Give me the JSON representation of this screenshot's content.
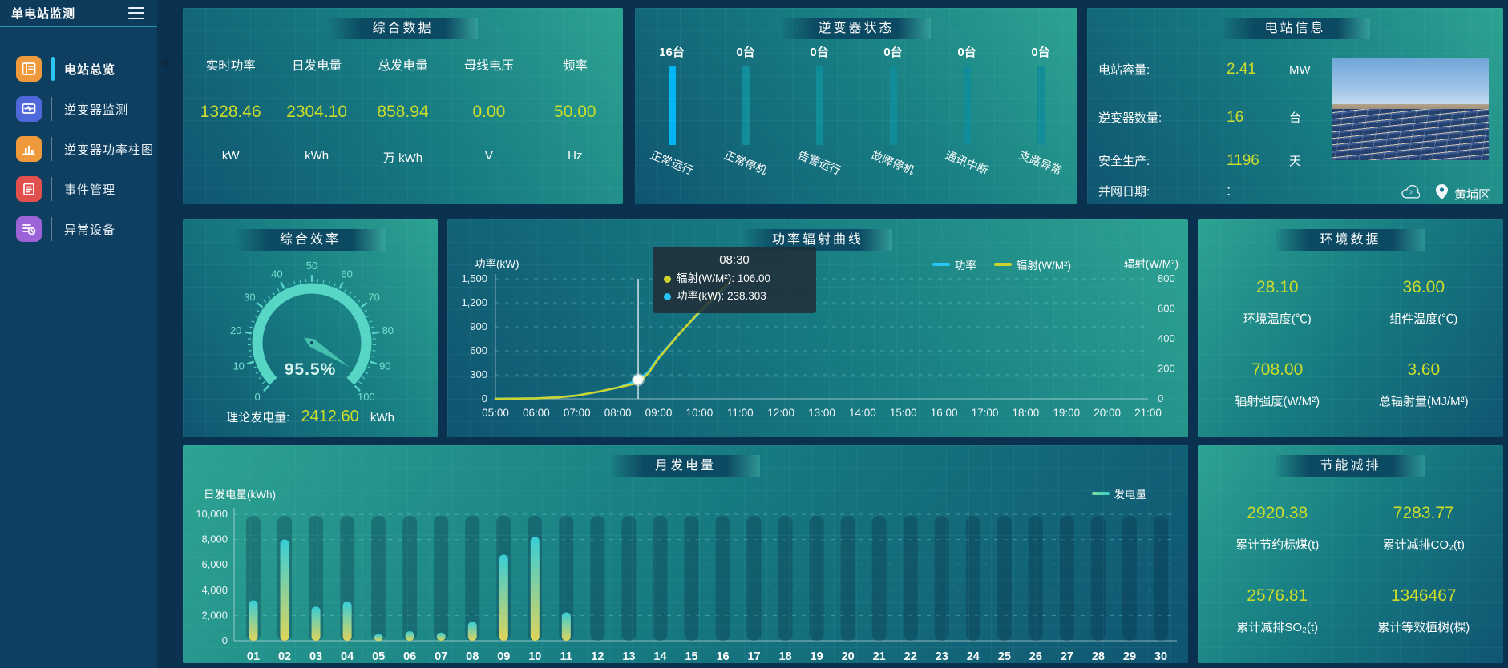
{
  "sidebar": {
    "title": "单电站监测",
    "items": [
      {
        "label": "电站总览",
        "active": true
      },
      {
        "label": "逆变器监测",
        "active": false
      },
      {
        "label": "逆变器功率柱图",
        "active": false
      },
      {
        "label": "事件管理",
        "active": false
      },
      {
        "label": "异常设备",
        "active": false
      }
    ]
  },
  "panels": {
    "summary": {
      "title": "综合数据",
      "metrics": [
        {
          "label": "实时功率",
          "value": "1328.46",
          "unit": "kW"
        },
        {
          "label": "日发电量",
          "value": "2304.10",
          "unit": "kWh"
        },
        {
          "label": "总发电量",
          "value": "858.94",
          "unit": "万 kWh"
        },
        {
          "label": "母线电压",
          "value": "0.00",
          "unit": "V"
        },
        {
          "label": "频率",
          "value": "50.00",
          "unit": "Hz"
        }
      ]
    },
    "inverter_status": {
      "title": "逆变器状态",
      "items": [
        {
          "count": "16台",
          "label": "正常运行",
          "highlight": true
        },
        {
          "count": "0台",
          "label": "正常停机",
          "highlight": false
        },
        {
          "count": "0台",
          "label": "告警运行",
          "highlight": false
        },
        {
          "count": "0台",
          "label": "故障停机",
          "highlight": false
        },
        {
          "count": "0台",
          "label": "通讯中断",
          "highlight": false
        },
        {
          "count": "0台",
          "label": "支路异常",
          "highlight": false
        }
      ]
    },
    "station_info": {
      "title": "电站信息",
      "rows": [
        {
          "label": "电站容量:",
          "value": "2.41",
          "unit": "MW"
        },
        {
          "label": "逆变器数量:",
          "value": "16",
          "unit": "台"
        },
        {
          "label": "安全生产:",
          "value": "1196",
          "unit": "天"
        },
        {
          "label": "并网日期:",
          "value": ":",
          "unit": ""
        }
      ],
      "location": "黄埔区"
    },
    "efficiency": {
      "title": "综合效率",
      "gauge_value": 95.5,
      "gauge_label": "95.5%",
      "gauge_min": 0,
      "gauge_max": 100,
      "tick_labels": [
        "0",
        "10",
        "20",
        "30",
        "40",
        "50",
        "60",
        "70",
        "80",
        "90",
        "100"
      ],
      "theory_label": "理论发电量:",
      "theory_value": "2412.60",
      "theory_unit": "kWh"
    },
    "environment": {
      "title": "环境数据",
      "metrics": [
        {
          "value": "28.10",
          "label": "环境温度(℃)"
        },
        {
          "value": "36.00",
          "label": "组件温度(℃)"
        },
        {
          "value": "708.00",
          "label": "辐射强度(W/M²)"
        },
        {
          "value": "3.60",
          "label": "总辐射量(MJ/M²)"
        }
      ]
    },
    "savings": {
      "title": "节能减排",
      "metrics": [
        {
          "value": "2920.38",
          "label": "累计节约标煤(t)"
        },
        {
          "value": "7283.77",
          "label": "累计减排CO₂(t)"
        },
        {
          "value": "2576.81",
          "label": "累计减排SO₂(t)"
        },
        {
          "value": "1346467",
          "label": "累计等效植树(棵)"
        }
      ]
    }
  },
  "chart_data": [
    {
      "id": "power_radiation_curve",
      "type": "line",
      "title": "功率辐射曲线",
      "x": [
        "05:00",
        "06:00",
        "07:00",
        "08:00",
        "09:00",
        "10:00",
        "11:00",
        "12:00",
        "13:00",
        "14:00",
        "15:00",
        "16:00",
        "17:00",
        "18:00",
        "19:00",
        "20:00",
        "21:00"
      ],
      "x_range_hours": [
        5,
        21
      ],
      "left_axis": {
        "name": "功率(kW)",
        "min": 0,
        "max": 1500,
        "ticks": [
          "0",
          "300",
          "600",
          "900",
          "1,200",
          "1,500"
        ]
      },
      "right_axis": {
        "name": "辐射(W/M²)",
        "min": 0,
        "max": 800,
        "ticks": [
          "0",
          "200",
          "400",
          "600",
          "800"
        ]
      },
      "series": [
        {
          "name": "功率",
          "axis": "left",
          "color": "#27c5f5",
          "points": [
            [
              5,
              2
            ],
            [
              5.5,
              3
            ],
            [
              6,
              6
            ],
            [
              6.5,
              18
            ],
            [
              7,
              42
            ],
            [
              7.5,
              85
            ],
            [
              8,
              140
            ],
            [
              8.25,
              185
            ],
            [
              8.5,
              238.3
            ],
            [
              8.75,
              340
            ],
            [
              9,
              520
            ],
            [
              9.25,
              665
            ],
            [
              9.5,
              810
            ],
            [
              9.75,
              945
            ],
            [
              10,
              1075
            ],
            [
              10.25,
              1195
            ],
            [
              10.5,
              1315
            ],
            [
              10.75,
              1430
            ]
          ]
        },
        {
          "name": "辐射(W/M²)",
          "axis": "right",
          "color": "#cdd32e",
          "points": [
            [
              5,
              0
            ],
            [
              5.5,
              1
            ],
            [
              6,
              3
            ],
            [
              6.5,
              9
            ],
            [
              7,
              22
            ],
            [
              7.5,
              46
            ],
            [
              8,
              75
            ],
            [
              8.25,
              90
            ],
            [
              8.5,
              106
            ],
            [
              8.75,
              170
            ],
            [
              9,
              270
            ],
            [
              9.25,
              350
            ],
            [
              9.5,
              430
            ],
            [
              9.75,
              505
            ],
            [
              10,
              580
            ],
            [
              10.25,
              650
            ],
            [
              10.5,
              715
            ],
            [
              10.75,
              780
            ]
          ]
        }
      ],
      "tooltip": {
        "time": "08:30",
        "marker_x": 8.5,
        "marker_y": 238.303,
        "rows": [
          {
            "series": "辐射(W/M²)",
            "color": "#cdd32e",
            "text": "辐射(W/M²): 106.00"
          },
          {
            "series": "功率",
            "color": "#27c5f5",
            "text": "功率(kW): 238.303"
          }
        ]
      },
      "grid": true,
      "legend_position": "top"
    },
    {
      "id": "monthly_generation",
      "type": "bar",
      "title": "月发电量",
      "ylabel": "日发电量(kWh)",
      "legend": "发电量",
      "categories": [
        "01",
        "02",
        "03",
        "04",
        "05",
        "06",
        "07",
        "08",
        "09",
        "10",
        "11",
        "12",
        "13",
        "14",
        "15",
        "16",
        "17",
        "18",
        "19",
        "20",
        "21",
        "22",
        "23",
        "24",
        "25",
        "26",
        "27",
        "28",
        "29",
        "30"
      ],
      "values": [
        3200,
        8000,
        2700,
        3100,
        500,
        750,
        650,
        1500,
        6800,
        8200,
        2250,
        0,
        0,
        0,
        0,
        0,
        0,
        0,
        0,
        0,
        0,
        0,
        0,
        0,
        0,
        0,
        0,
        0,
        0,
        0
      ],
      "ylim": [
        0,
        10000
      ],
      "yticks": [
        "0",
        "2,000",
        "4,000",
        "6,000",
        "8,000",
        "10,000"
      ],
      "bar_gradient": [
        "#ded45a",
        "#38cdd8"
      ]
    }
  ],
  "colors": {
    "value_accent": "#cddc29",
    "power_line": "#27c5f5",
    "radiation_line": "#cdd32e",
    "status_highlight": "#00b5f4",
    "status_normal": "#108d98",
    "gauge": "#58d6c5"
  },
  "icons": {
    "weather": "cloud-question-icon",
    "location": "map-pin-icon",
    "menu": "hamburger-menu-icon"
  }
}
